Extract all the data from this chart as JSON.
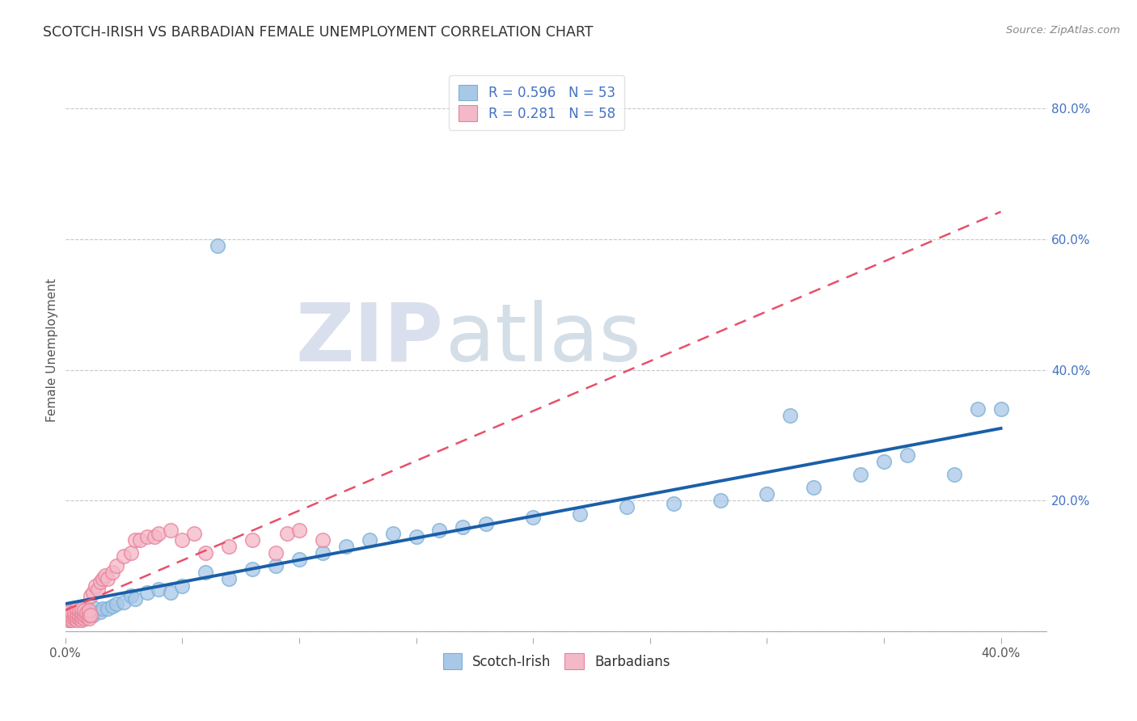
{
  "title": "SCOTCH-IRISH VS BARBADIAN FEMALE UNEMPLOYMENT CORRELATION CHART",
  "source": "Source: ZipAtlas.com",
  "ylabel": "Female Unemployment",
  "xlim": [
    0.0,
    0.42
  ],
  "ylim": [
    -0.01,
    0.87
  ],
  "xticks": [
    0.0,
    0.05,
    0.1,
    0.15,
    0.2,
    0.25,
    0.3,
    0.35,
    0.4
  ],
  "xticklabels": [
    "0.0%",
    "",
    "",
    "",
    "",
    "",
    "",
    "",
    "40.0%"
  ],
  "yticks": [
    0.0,
    0.2,
    0.4,
    0.6,
    0.8
  ],
  "yticklabels_right": [
    "",
    "20.0%",
    "40.0%",
    "60.0%",
    "80.0%"
  ],
  "watermark_zip": "ZIP",
  "watermark_atlas": "atlas",
  "legend_r1": "R = 0.596",
  "legend_n1": "N = 53",
  "legend_r2": "R = 0.281",
  "legend_n2": "N = 58",
  "color_blue": "#a8c8e8",
  "color_blue_edge": "#7aafd4",
  "color_pink": "#f4b8c8",
  "color_pink_edge": "#e8829a",
  "color_blue_line": "#1a5fa8",
  "color_pink_line": "#e8506a",
  "scotch_irish_x": [
    0.001,
    0.002,
    0.003,
    0.004,
    0.005,
    0.006,
    0.007,
    0.008,
    0.009,
    0.01,
    0.011,
    0.012,
    0.013,
    0.015,
    0.016,
    0.018,
    0.02,
    0.022,
    0.025,
    0.028,
    0.03,
    0.035,
    0.04,
    0.045,
    0.05,
    0.06,
    0.065,
    0.07,
    0.08,
    0.09,
    0.1,
    0.11,
    0.12,
    0.13,
    0.14,
    0.15,
    0.16,
    0.17,
    0.18,
    0.2,
    0.22,
    0.24,
    0.26,
    0.28,
    0.3,
    0.31,
    0.32,
    0.34,
    0.35,
    0.36,
    0.38,
    0.39,
    0.4
  ],
  "scotch_irish_y": [
    0.02,
    0.018,
    0.022,
    0.025,
    0.02,
    0.025,
    0.03,
    0.028,
    0.022,
    0.03,
    0.028,
    0.025,
    0.035,
    0.03,
    0.035,
    0.035,
    0.038,
    0.042,
    0.045,
    0.055,
    0.05,
    0.06,
    0.065,
    0.06,
    0.07,
    0.09,
    0.59,
    0.08,
    0.095,
    0.1,
    0.11,
    0.12,
    0.13,
    0.14,
    0.15,
    0.145,
    0.155,
    0.16,
    0.165,
    0.175,
    0.18,
    0.19,
    0.195,
    0.2,
    0.21,
    0.33,
    0.22,
    0.24,
    0.26,
    0.27,
    0.24,
    0.34,
    0.34
  ],
  "barbadians_x": [
    0.001,
    0.001,
    0.002,
    0.002,
    0.002,
    0.003,
    0.003,
    0.003,
    0.004,
    0.004,
    0.004,
    0.005,
    0.005,
    0.005,
    0.005,
    0.006,
    0.006,
    0.006,
    0.007,
    0.007,
    0.007,
    0.007,
    0.008,
    0.008,
    0.008,
    0.009,
    0.009,
    0.01,
    0.01,
    0.01,
    0.011,
    0.011,
    0.012,
    0.013,
    0.014,
    0.015,
    0.016,
    0.017,
    0.018,
    0.02,
    0.022,
    0.025,
    0.028,
    0.03,
    0.032,
    0.035,
    0.038,
    0.04,
    0.045,
    0.05,
    0.055,
    0.06,
    0.07,
    0.08,
    0.09,
    0.095,
    0.1,
    0.11
  ],
  "barbadians_y": [
    0.018,
    0.022,
    0.02,
    0.025,
    0.03,
    0.018,
    0.022,
    0.028,
    0.02,
    0.025,
    0.03,
    0.018,
    0.022,
    0.028,
    0.035,
    0.02,
    0.025,
    0.032,
    0.018,
    0.022,
    0.028,
    0.035,
    0.02,
    0.025,
    0.032,
    0.022,
    0.028,
    0.02,
    0.025,
    0.032,
    0.025,
    0.055,
    0.06,
    0.07,
    0.065,
    0.075,
    0.08,
    0.085,
    0.08,
    0.09,
    0.1,
    0.115,
    0.12,
    0.14,
    0.14,
    0.145,
    0.145,
    0.15,
    0.155,
    0.14,
    0.15,
    0.12,
    0.13,
    0.14,
    0.12,
    0.15,
    0.155,
    0.14
  ]
}
